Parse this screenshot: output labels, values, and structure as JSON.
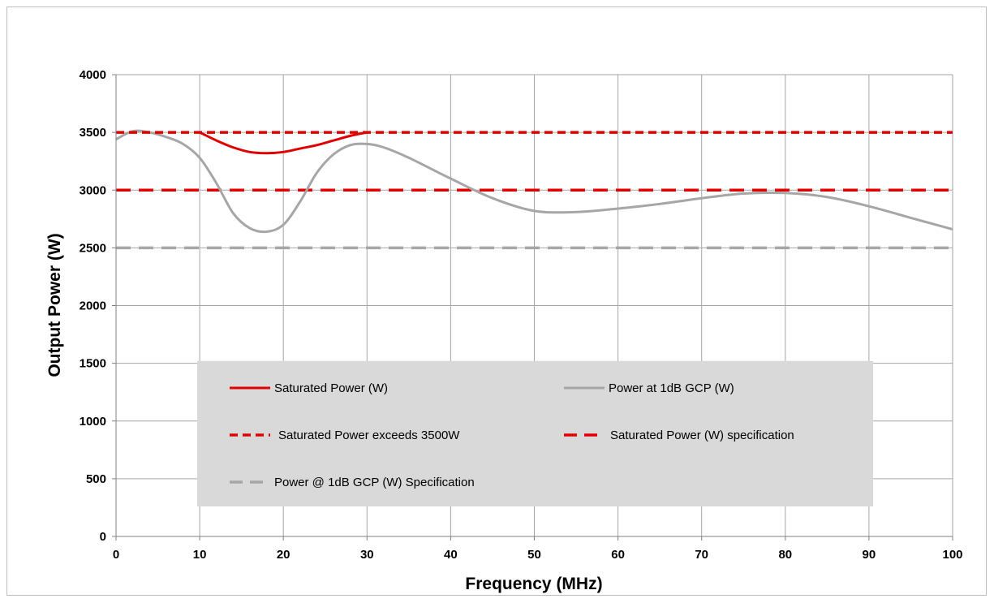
{
  "chart_data": {
    "type": "line",
    "title": "",
    "xlabel": "Frequency (MHz)",
    "ylabel": "Output Power (W)",
    "xlim": [
      0,
      100
    ],
    "ylim": [
      0,
      4000
    ],
    "x_ticks": [
      0,
      10,
      20,
      30,
      40,
      50,
      60,
      70,
      80,
      90,
      100
    ],
    "y_ticks": [
      0,
      500,
      1000,
      1500,
      2000,
      2500,
      3000,
      3500,
      4000
    ],
    "grid": true,
    "legend_position": "inside-bottom-center",
    "series": [
      {
        "name": "Saturated Power (W)",
        "style": "solid",
        "color": "#e00000",
        "x": [
          10,
          12,
          14,
          16,
          18,
          20,
          22,
          24,
          26,
          28,
          30
        ],
        "y": [
          3500,
          3430,
          3370,
          3330,
          3320,
          3330,
          3360,
          3390,
          3430,
          3470,
          3500
        ]
      },
      {
        "name": "Power at 1dB GCP (W)",
        "style": "solid",
        "color": "#a6a6a6",
        "x": [
          0,
          2,
          4,
          6,
          8,
          10,
          12,
          14,
          16,
          18,
          20,
          22,
          24,
          26,
          28,
          30,
          32,
          35,
          40,
          45,
          50,
          55,
          60,
          65,
          70,
          75,
          80,
          85,
          90,
          95,
          100
        ],
        "y": [
          3440,
          3510,
          3500,
          3460,
          3400,
          3280,
          3060,
          2800,
          2670,
          2640,
          2700,
          2900,
          3150,
          3310,
          3390,
          3400,
          3370,
          3280,
          3100,
          2930,
          2820,
          2810,
          2840,
          2880,
          2930,
          2970,
          2975,
          2940,
          2860,
          2760,
          2660
        ]
      },
      {
        "name": "Saturated Power exceeds 3500W",
        "style": "dashed",
        "color": "#e00000",
        "x": [
          0,
          10,
          30,
          100
        ],
        "y": [
          3500,
          3500,
          3500,
          3500
        ]
      },
      {
        "name": "Saturated Power (W) specification",
        "style": "long-dashed",
        "color": "#e00000",
        "x": [
          0,
          100
        ],
        "y": [
          3000,
          3000
        ]
      },
      {
        "name": "Power @ 1dB GCP (W) Specification",
        "style": "long-dashed",
        "color": "#a6a6a6",
        "x": [
          0,
          100
        ],
        "y": [
          2500,
          2500
        ]
      }
    ]
  }
}
